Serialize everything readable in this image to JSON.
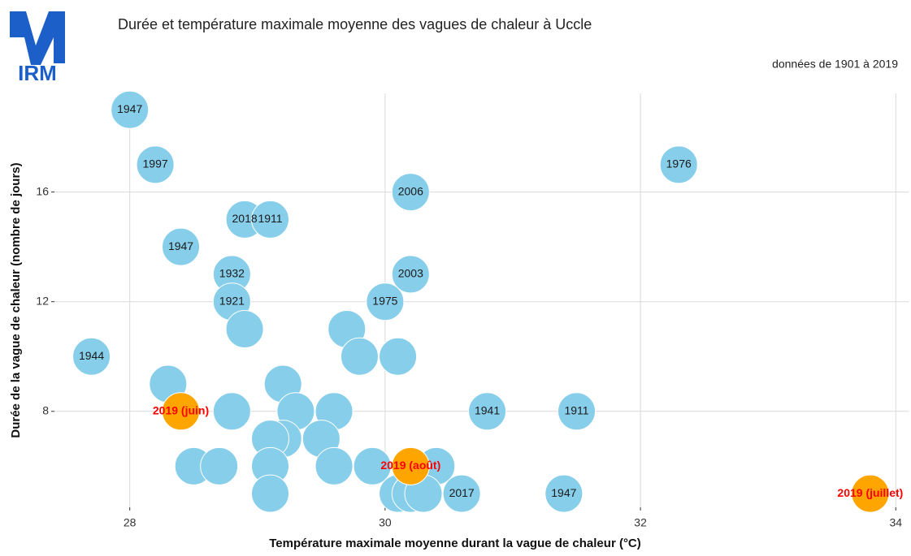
{
  "logo_text": "IRM",
  "chart_data": {
    "type": "scatter",
    "title": "Durée et température maximale moyenne des vagues de chaleur à Uccle",
    "subtitle": "données de 1901 à 2019",
    "x_label": "Température maximale moyenne durant la vague de chaleur (°C)",
    "y_label": "Durée de la vague de chaleur (nombre de jours)",
    "xlim": [
      27.41,
      34.1
    ],
    "ylim": [
      4.5,
      19.6
    ],
    "xticks": [
      28,
      30,
      32,
      34
    ],
    "yticks": [
      8,
      12,
      16
    ],
    "grid": true,
    "series": [
      {
        "color": "#87ceeb",
        "label_color": "#1a1a1a",
        "x": [
          28.0,
          28.2,
          32.3,
          30.2,
          28.9,
          29.1,
          28.4,
          28.8,
          30.2,
          28.8,
          30.0,
          28.9,
          29.7,
          27.7,
          29.8,
          30.1,
          28.3,
          29.2,
          28.8,
          29.3,
          29.6,
          30.8,
          31.5,
          29.2,
          29.1,
          29.5,
          28.5,
          28.7,
          29.1,
          29.6,
          29.9,
          30.4,
          29.1,
          30.1,
          30.2,
          30.3,
          30.6,
          31.4
        ],
        "y": [
          19,
          17,
          17,
          16,
          15,
          15,
          14,
          13,
          13,
          12,
          12,
          11,
          11,
          10,
          10,
          10,
          9,
          9,
          8,
          8,
          8,
          8,
          8,
          7,
          7,
          7,
          6,
          6,
          6,
          6,
          6,
          6,
          5,
          5,
          5,
          5,
          5,
          5
        ],
        "labels": [
          "1947",
          "1997",
          "1976",
          "2006",
          "2018",
          "1911",
          "1947",
          "1932",
          "2003",
          "1921",
          "1975",
          null,
          null,
          "1944",
          null,
          null,
          null,
          null,
          null,
          null,
          null,
          "1941",
          "1911",
          null,
          null,
          null,
          null,
          null,
          null,
          null,
          null,
          null,
          null,
          null,
          null,
          null,
          "2017",
          "1947"
        ]
      },
      {
        "color": "#ffa500",
        "label_color": "#ff0000",
        "x": [
          28.4,
          30.2,
          33.8
        ],
        "y": [
          8,
          6,
          5
        ],
        "labels": [
          "2019 (juin)",
          "2019 (août)",
          "2019 (juillet)"
        ]
      }
    ]
  }
}
